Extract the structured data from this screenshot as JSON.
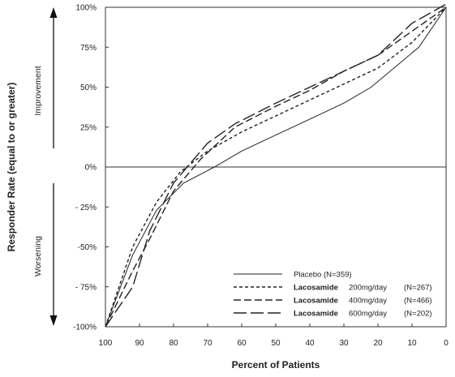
{
  "chart_data": {
    "type": "line",
    "xlabel": "Percent of Patients",
    "ylabel": "Responder Rate (equal to or greater)",
    "xlim": [
      100,
      0
    ],
    "ylim": [
      -100,
      100
    ],
    "x_ticks": [
      "100",
      "90",
      "80",
      "70",
      "60",
      "50",
      "40",
      "30",
      "20",
      "10",
      "0"
    ],
    "y_ticks": [
      "100%",
      "75%",
      "50%",
      "25%",
      "0%",
      "- 25%",
      "-50%",
      "- 75%",
      "-100%"
    ],
    "zero_line": true,
    "grid": false,
    "legend_position": "bottom-right",
    "annotations": {
      "up_arrow": "Improvement",
      "down_arrow": "Worsening"
    },
    "series": [
      {
        "legend_name": "Placebo",
        "legend_dose": "",
        "legend_n": "(N=359)",
        "dash": "solid",
        "x": [
          100,
          92,
          85,
          77,
          68,
          60,
          50,
          40,
          30,
          22,
          8,
          0
        ],
        "y": [
          -100,
          -55,
          -27,
          -10,
          0,
          10,
          20,
          30,
          40,
          50,
          75,
          100
        ]
      },
      {
        "legend_name": "Lacosamide",
        "legend_dose": "200mg/day",
        "legend_n": "(N=267)",
        "dash": "short-dash",
        "x": [
          100,
          92,
          85,
          78,
          70,
          60,
          50,
          40,
          30,
          20,
          10,
          0
        ],
        "y": [
          -100,
          -50,
          -22,
          -3,
          10,
          22,
          32,
          42,
          52,
          62,
          78,
          100
        ]
      },
      {
        "legend_name": "Lacosamide",
        "legend_dose": "400mg/day",
        "legend_n": "(N=466)",
        "dash": "medium-dash",
        "x": [
          100,
          92,
          87,
          80,
          72,
          62,
          50,
          40,
          30,
          20,
          10,
          0
        ],
        "y": [
          -100,
          -65,
          -45,
          -15,
          5,
          25,
          38,
          48,
          60,
          70,
          85,
          100
        ]
      },
      {
        "legend_name": "Lacosamide",
        "legend_dose": "600mg/day",
        "legend_n": "(N=202)",
        "dash": "long-dash",
        "x": [
          100,
          92,
          87,
          80,
          70,
          62,
          50,
          40,
          30,
          20,
          10,
          0
        ],
        "y": [
          -100,
          -75,
          -40,
          -10,
          15,
          27,
          40,
          50,
          60,
          70,
          90,
          102
        ]
      }
    ]
  }
}
